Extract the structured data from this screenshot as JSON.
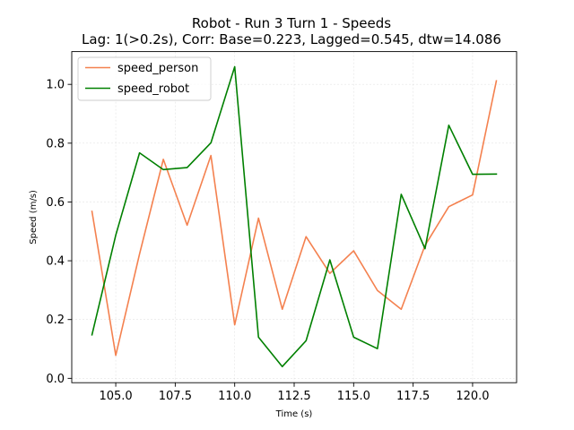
{
  "chart_data": {
    "type": "line",
    "title": "Robot - Run 3 Turn 1 - Speeds",
    "subtitle": "Lag: 1(>0.2s), Corr: Base=0.223, Lagged=0.545, dtw=14.086",
    "xlabel": "Time (s)",
    "ylabel": "Speed (m/s)",
    "xlim": [
      103.15,
      121.85
    ],
    "ylim": [
      -0.0148,
      1.1115
    ],
    "xticks": [
      105.0,
      107.5,
      110.0,
      112.5,
      115.0,
      117.5,
      120.0
    ],
    "xtick_labels": [
      "105.0",
      "107.5",
      "110.0",
      "112.5",
      "115.0",
      "117.5",
      "120.0"
    ],
    "yticks": [
      0.0,
      0.2,
      0.4,
      0.6,
      0.8,
      1.0
    ],
    "ytick_labels": [
      "0.0",
      "0.2",
      "0.4",
      "0.6",
      "0.8",
      "1.0"
    ],
    "grid": true,
    "legend_position": "top-left",
    "x": [
      104,
      105,
      106,
      107,
      108,
      109,
      110,
      111,
      112,
      113,
      114,
      115,
      116,
      117,
      118,
      119,
      120,
      121
    ],
    "series": [
      {
        "name": "speed_person",
        "color": "#f4814f",
        "values": [
          0.568,
          0.078,
          0.423,
          0.745,
          0.521,
          0.758,
          0.182,
          0.545,
          0.235,
          0.482,
          0.357,
          0.434,
          0.299,
          0.235,
          0.452,
          0.584,
          0.624,
          1.012
        ]
      },
      {
        "name": "speed_robot",
        "color": "#008000",
        "values": [
          0.148,
          0.487,
          0.767,
          0.71,
          0.717,
          0.801,
          1.06,
          0.14,
          0.04,
          0.128,
          0.403,
          0.14,
          0.101,
          0.626,
          0.441,
          0.861,
          0.694,
          0.695
        ]
      }
    ]
  }
}
